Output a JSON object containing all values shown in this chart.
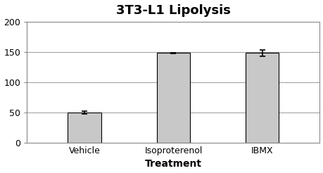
{
  "title": "3T3-L1 Lipolysis",
  "xlabel": "Treatment",
  "ylabel": "",
  "categories": [
    "Vehicle",
    "Isoproterenol",
    "IBMX"
  ],
  "values": [
    50,
    148,
    148
  ],
  "errors": [
    2,
    1,
    5
  ],
  "bar_color": "#c8c8c8",
  "bar_edge_color": "#000000",
  "ylim": [
    0,
    200
  ],
  "yticks": [
    0,
    50,
    100,
    150,
    200
  ],
  "title_fontsize": 13,
  "xlabel_fontsize": 10,
  "tick_fontsize": 9,
  "background_color": "#ffffff",
  "bar_width": 0.38,
  "error_capsize": 3,
  "error_linewidth": 1.2,
  "grid_color": "#999999",
  "grid_linewidth": 0.7
}
